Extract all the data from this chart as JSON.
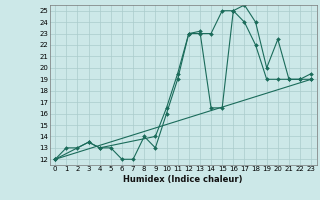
{
  "xlabel": "Humidex (Indice chaleur)",
  "background_color": "#cce8e8",
  "grid_color": "#aacccc",
  "line_color": "#1a6b5a",
  "xlim": [
    -0.5,
    23.5
  ],
  "ylim": [
    11.5,
    25.5
  ],
  "xticks": [
    0,
    1,
    2,
    3,
    4,
    5,
    6,
    7,
    8,
    9,
    10,
    11,
    12,
    13,
    14,
    15,
    16,
    17,
    18,
    19,
    20,
    21,
    22,
    23
  ],
  "yticks": [
    12,
    13,
    14,
    15,
    16,
    17,
    18,
    19,
    20,
    21,
    22,
    23,
    24,
    25
  ],
  "series1_x": [
    0,
    1,
    2,
    3,
    4,
    5,
    6,
    7,
    8,
    9,
    10,
    11,
    12,
    13,
    14,
    15,
    16,
    17,
    18,
    19,
    20,
    21,
    22,
    23
  ],
  "series1_y": [
    12,
    13,
    13,
    13.5,
    13,
    13,
    12,
    12,
    14,
    13,
    16,
    19,
    23,
    23,
    23,
    25,
    25,
    24,
    22,
    19,
    19,
    19,
    19,
    19
  ],
  "series2_x": [
    0,
    3,
    4,
    9,
    10,
    11,
    12,
    13,
    14,
    15,
    16,
    17,
    18,
    19,
    20,
    21,
    22,
    23
  ],
  "series2_y": [
    12,
    13.5,
    13,
    14,
    16.5,
    19.5,
    23.0,
    23.2,
    16.5,
    16.5,
    25,
    25.5,
    24,
    20,
    22.5,
    19,
    19,
    19.5
  ],
  "series3_x": [
    0,
    23
  ],
  "series3_y": [
    12,
    19
  ]
}
